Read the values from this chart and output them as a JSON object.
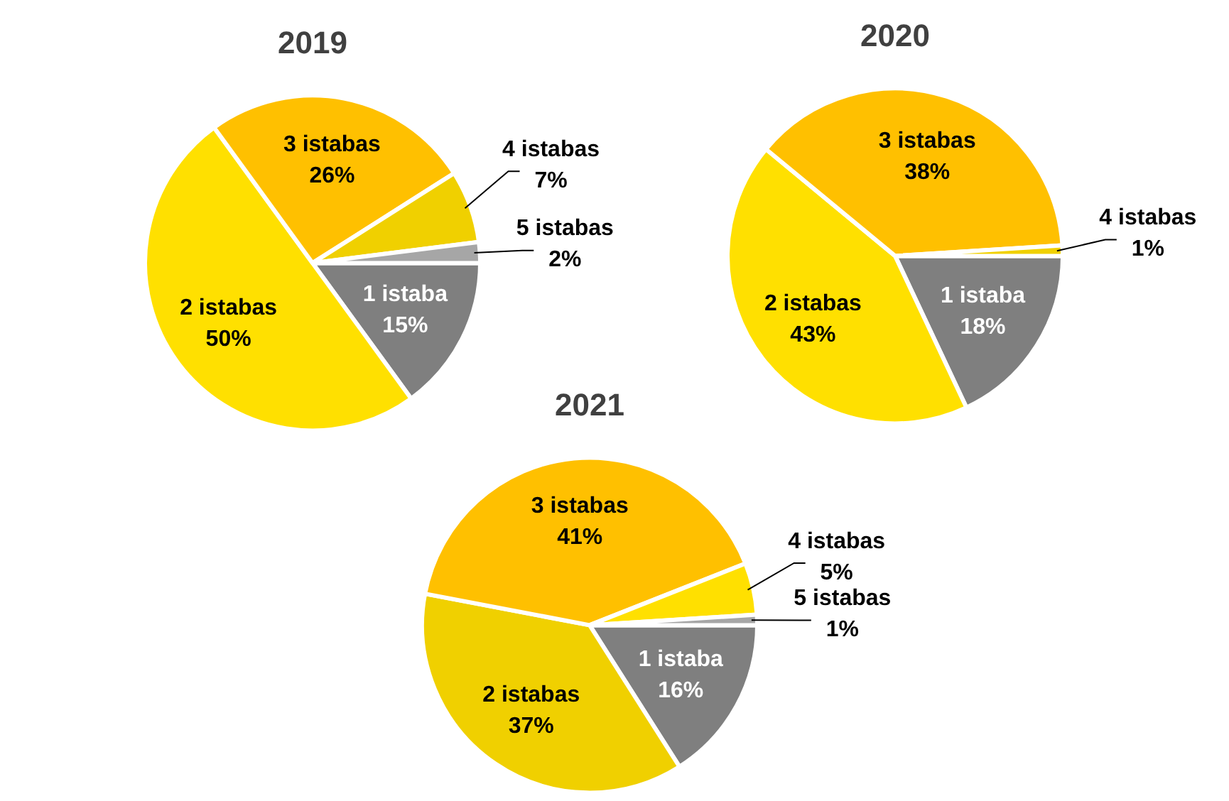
{
  "chart_data": [
    {
      "type": "pie",
      "title": "2019",
      "categories": [
        "1 istaba",
        "2 istabas",
        "3 istabas",
        "4 istabas",
        "5 istabas"
      ],
      "values": [
        15,
        50,
        26,
        7,
        2
      ],
      "value_labels": [
        "15%",
        "50%",
        "26%",
        "7%",
        "2%"
      ],
      "colors": [
        "#7f7f7f",
        "#ffe000",
        "#ffc000",
        "#f0d000",
        "#a6a6a6"
      ],
      "legend": false
    },
    {
      "type": "pie",
      "title": "2020",
      "categories": [
        "1 istaba",
        "2 istabas",
        "3 istabas",
        "4 istabas"
      ],
      "values": [
        18,
        43,
        38,
        1
      ],
      "value_labels": [
        "18%",
        "43%",
        "38%",
        "1%"
      ],
      "colors": [
        "#7f7f7f",
        "#ffe000",
        "#ffc000",
        "#f0d000"
      ],
      "legend": false
    },
    {
      "type": "pie",
      "title": "2021",
      "categories": [
        "1 istaba",
        "2 istabas",
        "3 istabas",
        "4 istabas",
        "5 istabas"
      ],
      "values": [
        16,
        37,
        41,
        5,
        1
      ],
      "value_labels": [
        "16%",
        "37%",
        "41%",
        "5%",
        "1%"
      ],
      "colors": [
        "#7f7f7f",
        "#f0d000",
        "#ffc000",
        "#ffe000",
        "#a6a6a6"
      ],
      "legend": false
    }
  ]
}
